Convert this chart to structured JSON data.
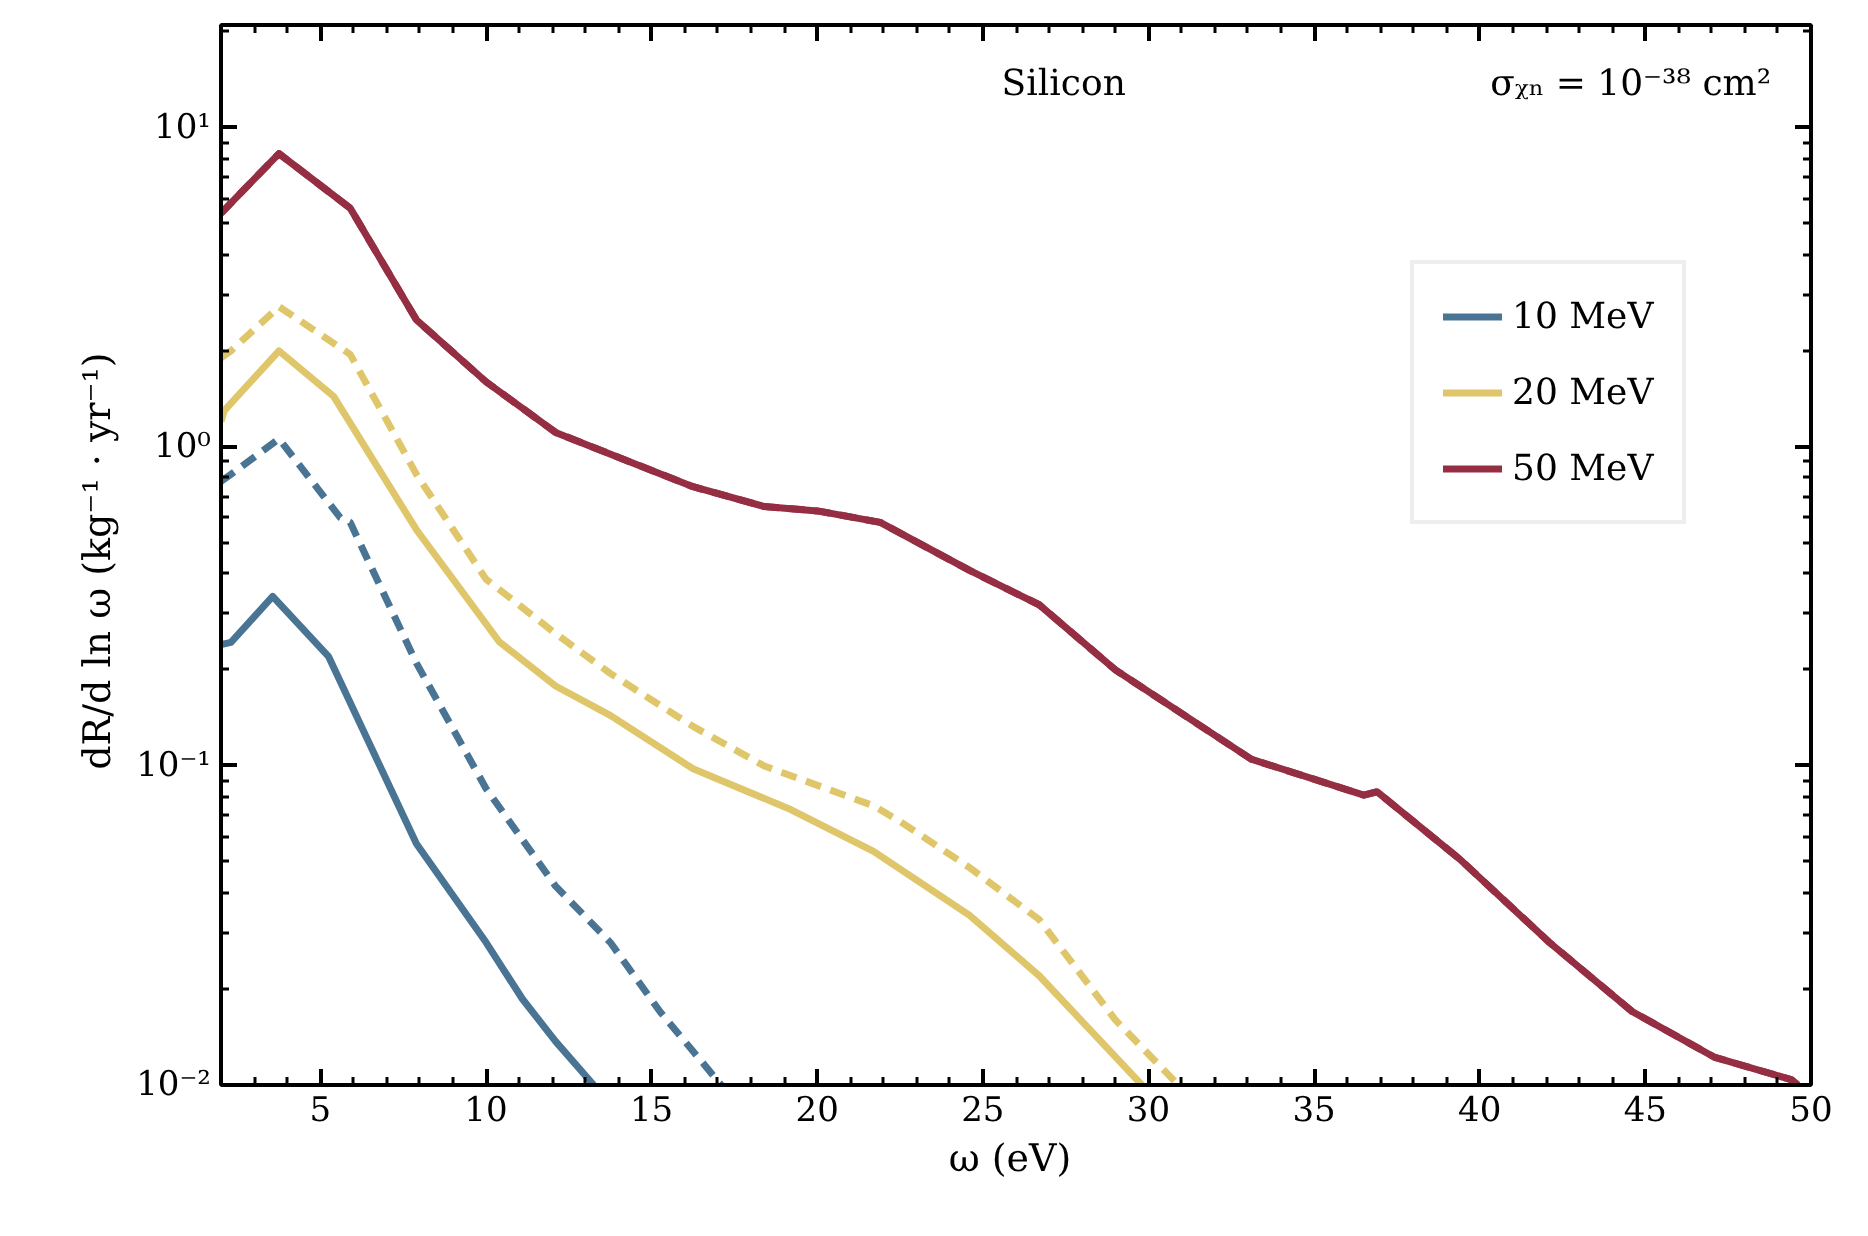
{
  "chart_data": {
    "type": "line",
    "xlabel": "ω  (eV)",
    "ylabel": "dR/d ln ω  (kg⁻¹ · yr⁻¹)",
    "annotations": [
      "Silicon",
      "σᵪₙ = 10⁻³⁸ cm²"
    ],
    "log": "y",
    "grid": false,
    "legend": "top right",
    "xlim": [
      2,
      50
    ],
    "xticks": [
      5,
      10,
      15,
      20,
      25,
      30,
      35,
      40,
      45,
      50
    ],
    "ylim": [
      0.01,
      21
    ],
    "yticks": [
      {
        "value": 0.01,
        "label": "10⁻²"
      },
      {
        "value": 0.1,
        "label": "10⁻¹"
      },
      {
        "value": 1,
        "label": "10⁰"
      },
      {
        "value": 10,
        "label": "10¹"
      }
    ],
    "series": [
      {
        "name": "10 MeV",
        "color": "#4a7494",
        "line_style": "solid",
        "x": [
          2,
          2.3,
          3.56,
          5.25,
          7.9,
          10,
          11.1,
          12.1,
          13.25
        ],
        "values": [
          0.24,
          0.244,
          0.34,
          0.22,
          0.057,
          0.028,
          0.0186,
          0.0137,
          0.01
        ]
      },
      {
        "name": "20 MeV",
        "color": "#e0c66a",
        "line_style": "solid",
        "x": [
          2,
          2.1,
          3.75,
          5.4,
          7.9,
          10.4,
          12.1,
          13.75,
          16.25,
          19.2,
          21.7,
          24.6,
          26.7,
          29.8
        ],
        "values": [
          1.2,
          1.3,
          2.0,
          1.44,
          0.55,
          0.245,
          0.178,
          0.144,
          0.098,
          0.073,
          0.054,
          0.034,
          0.022,
          0.01
        ]
      },
      {
        "name": "50 MeV",
        "color": "#952e43",
        "line_style": "solid",
        "x": [
          2,
          3.75,
          5.9,
          7.9,
          10,
          12.1,
          14.2,
          16.25,
          18.4,
          20,
          21.9,
          24.6,
          26.7,
          29,
          33.1,
          36.5,
          36.9,
          39.4,
          42.1,
          44.6,
          47.1,
          49.4,
          49.6
        ],
        "values": [
          5.4,
          8.3,
          5.6,
          2.5,
          1.6,
          1.11,
          0.91,
          0.75,
          0.65,
          0.63,
          0.58,
          0.41,
          0.32,
          0.2,
          0.105,
          0.081,
          0.083,
          0.051,
          0.028,
          0.017,
          0.0122,
          0.0104,
          0.01
        ]
      },
      {
        "color": "#4a7494",
        "line_style": "dashed",
        "x": [
          2,
          2.3,
          3.75,
          5.6,
          5.9,
          7.9,
          10,
          12.1,
          13.75,
          15.25,
          17.1
        ],
        "values": [
          0.78,
          0.82,
          1.06,
          0.6,
          0.58,
          0.21,
          0.085,
          0.042,
          0.028,
          0.017,
          0.01
        ]
      },
      {
        "color": "#e0c66a",
        "line_style": "dashed",
        "x": [
          2,
          2.3,
          3.75,
          5.9,
          7.9,
          10,
          12.1,
          13.75,
          16.25,
          18.4,
          21.7,
          22.5,
          24.6,
          26.7,
          29,
          30.9
        ],
        "values": [
          1.9,
          2.0,
          2.75,
          1.95,
          0.82,
          0.385,
          0.26,
          0.195,
          0.133,
          0.1,
          0.075,
          0.067,
          0.048,
          0.033,
          0.016,
          0.01
        ]
      },
      {
        "color": "#952e43",
        "line_style": "dashed",
        "x": [
          2,
          3.75,
          5.9,
          7.9,
          10,
          12.1,
          14.2,
          16.25,
          18.4,
          20,
          21.9,
          24.6,
          26.7,
          29,
          33.1,
          36.5,
          36.9,
          39.4,
          42.1,
          44.6,
          47.1,
          49.4,
          49.6
        ],
        "values": [
          5.4,
          8.3,
          5.6,
          2.5,
          1.6,
          1.11,
          0.91,
          0.75,
          0.65,
          0.63,
          0.58,
          0.41,
          0.32,
          0.2,
          0.105,
          0.081,
          0.083,
          0.051,
          0.028,
          0.017,
          0.0122,
          0.0104,
          0.01
        ]
      }
    ]
  }
}
